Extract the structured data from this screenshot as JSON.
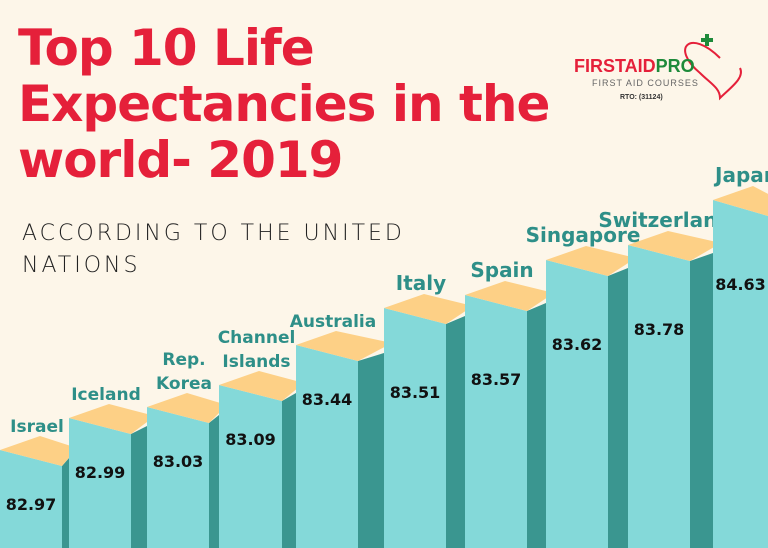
{
  "title": "Top 10 Life Expectancies in the world- 2019",
  "subtitle": "ACCORDING TO THE UNITED NATIONS",
  "logo": {
    "brand_red": "FIRSTAID",
    "brand_green": "PRO",
    "tagline": "FIRST AID COURSES",
    "rto": "RTO: (31124)"
  },
  "colors": {
    "background": "#fdf6e9",
    "title": "#e5203a",
    "bar_front": "#84d9d9",
    "bar_side": "#3a9690",
    "bar_top": "#fdd086",
    "label": "#2e8f88"
  },
  "chart_data": {
    "type": "bar",
    "title": "Top 10 Life Expectancies in the world- 2019",
    "categories": [
      "Israel",
      "Iceland",
      "Rep. Korea",
      "Channel Islands",
      "Australia",
      "Italy",
      "Spain",
      "Singapore",
      "Switzerland",
      "Japan"
    ],
    "values": [
      82.97,
      82.99,
      83.03,
      83.09,
      83.44,
      83.51,
      83.57,
      83.62,
      83.78,
      84.63
    ],
    "value_labels": [
      "82.97",
      "82.99",
      "83.03",
      "83.09",
      "83.44",
      "83.51",
      "83.57",
      "83.62",
      "83.78",
      "84.63"
    ],
    "xlabel": "",
    "ylabel": "",
    "grid": false
  }
}
